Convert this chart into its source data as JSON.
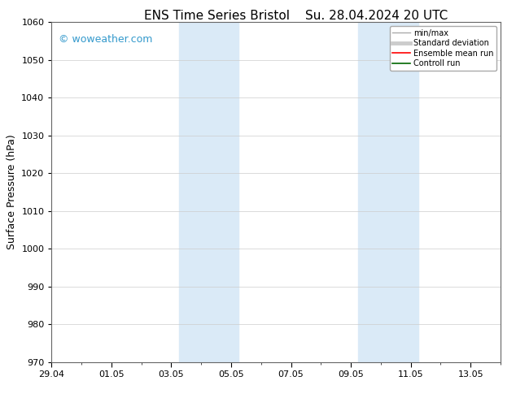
{
  "title_left": "ENS Time Series Bristol",
  "title_right": "Su. 28.04.2024 20 UTC",
  "ylabel": "Surface Pressure (hPa)",
  "ylim": [
    970,
    1060
  ],
  "yticks": [
    970,
    980,
    990,
    1000,
    1010,
    1020,
    1030,
    1040,
    1050,
    1060
  ],
  "xlim": [
    0,
    15
  ],
  "xtick_labels": [
    "29.04",
    "01.05",
    "03.05",
    "05.05",
    "07.05",
    "09.05",
    "11.05",
    "13.05"
  ],
  "xtick_positions": [
    0,
    2,
    4,
    6,
    8,
    10,
    12,
    14
  ],
  "shaded_bands": [
    {
      "xstart": 4.25,
      "xend": 6.25
    },
    {
      "xstart": 10.25,
      "xend": 12.25
    }
  ],
  "watermark": "© woweather.com",
  "watermark_color": "#3399cc",
  "background_color": "#ffffff",
  "plot_bg_color": "#ffffff",
  "band_color": "#daeaf7",
  "grid_color": "#cccccc",
  "legend_items": [
    {
      "label": "min/max",
      "color": "#aaaaaa",
      "lw": 1.0
    },
    {
      "label": "Standard deviation",
      "color": "#cccccc",
      "lw": 3.5
    },
    {
      "label": "Ensemble mean run",
      "color": "#ff0000",
      "lw": 1.2
    },
    {
      "label": "Controll run",
      "color": "#006600",
      "lw": 1.2
    }
  ],
  "title_fontsize": 11,
  "tick_fontsize": 8,
  "ylabel_fontsize": 9,
  "watermark_fontsize": 9,
  "legend_fontsize": 7
}
